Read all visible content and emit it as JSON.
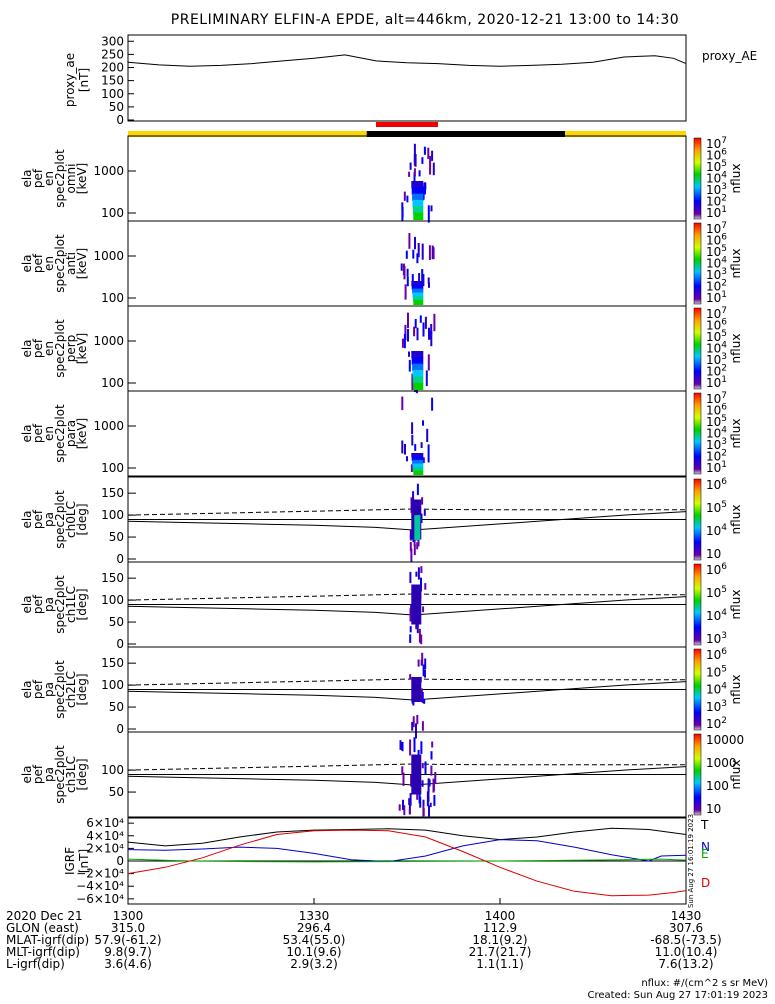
{
  "title": "PRELIMINARY ELFIN-A EPDE, alt=446km, 2020-12-21 13:00 to 14:30",
  "colors": {
    "day_bar": "#ffd700",
    "night_bar": "#000000",
    "science_bar": "#ee0000",
    "igrf_T": "#000000",
    "igrf_N": "#0000cc",
    "igrf_E": "#00aa00",
    "igrf_D": "#dd0000"
  },
  "panels": {
    "ae": {
      "ylabel": [
        "proxy_ae",
        "[nT]"
      ],
      "yticks": [
        "300",
        "250",
        "200",
        "150",
        "100",
        "50",
        "0"
      ],
      "legend": "proxy_AE"
    },
    "spec_en": [
      {
        "ylabel": [
          "ela",
          "pef",
          "en",
          "spec2plot",
          "omni",
          "[keV]"
        ],
        "yticks": [
          "1000",
          "100"
        ],
        "cb_ticks": [
          "10",
          "10",
          "10",
          "10",
          "10",
          "10",
          "10"
        ],
        "cb_exps": [
          "7",
          "6",
          "5",
          "4",
          "3",
          "2",
          "1"
        ],
        "cb_label": "nflux"
      },
      {
        "ylabel": [
          "ela",
          "pef",
          "en",
          "spec2plot",
          "anti",
          "[keV]"
        ],
        "yticks": [
          "1000",
          "100"
        ],
        "cb_ticks": [
          "10",
          "10",
          "10",
          "10",
          "10",
          "10",
          "10"
        ],
        "cb_exps": [
          "7",
          "6",
          "5",
          "4",
          "3",
          "2",
          "1"
        ],
        "cb_label": "nflux"
      },
      {
        "ylabel": [
          "ela",
          "pef",
          "en",
          "spec2plot",
          "perp",
          "[keV]"
        ],
        "yticks": [
          "1000",
          "100"
        ],
        "cb_ticks": [
          "10",
          "10",
          "10",
          "10",
          "10",
          "10",
          "10"
        ],
        "cb_exps": [
          "7",
          "6",
          "5",
          "4",
          "3",
          "2",
          "1"
        ],
        "cb_label": "nflux"
      },
      {
        "ylabel": [
          "ela",
          "pef",
          "en",
          "spec2plot",
          "para",
          "[keV]"
        ],
        "yticks": [
          "1000",
          "100"
        ],
        "cb_ticks": [
          "10",
          "10",
          "10",
          "10",
          "10",
          "10",
          "10"
        ],
        "cb_exps": [
          "7",
          "6",
          "5",
          "4",
          "3",
          "2",
          "1"
        ],
        "cb_label": "nflux"
      }
    ],
    "spec_pa": [
      {
        "ylabel": [
          "ela",
          "pef",
          "pa",
          "spec2plot",
          "ch0LC",
          "[deg]"
        ],
        "yticks": [
          "150",
          "100",
          "50",
          "0"
        ],
        "cb_ticks": [
          "10",
          "10",
          "10",
          "10"
        ],
        "cb_exps": [
          "6",
          "5",
          "4",
          ""
        ],
        "cb_label": "nflux"
      },
      {
        "ylabel": [
          "ela",
          "pef",
          "pa",
          "spec2plot",
          "ch1LC",
          "[deg]"
        ],
        "yticks": [
          "150",
          "100",
          "50",
          "0"
        ],
        "cb_ticks": [
          "10",
          "10",
          "10",
          "10"
        ],
        "cb_exps": [
          "6",
          "5",
          "4",
          "3"
        ],
        "cb_label": "nflux"
      },
      {
        "ylabel": [
          "ela",
          "pef",
          "pa",
          "spec2plot",
          "ch2LC",
          "[deg]"
        ],
        "yticks": [
          "150",
          "100",
          "50",
          "0"
        ],
        "cb_ticks": [
          "10",
          "10",
          "10",
          "10",
          "10"
        ],
        "cb_exps": [
          "6",
          "5",
          "4",
          "3",
          "2"
        ],
        "cb_label": "nflux"
      },
      {
        "ylabel": [
          "ela",
          "pef",
          "pa",
          "spec2plot",
          "ch3LC",
          "[deg]"
        ],
        "yticks": [
          "100",
          "50"
        ],
        "cb_ticks": [
          "10000",
          "1000",
          "100",
          "10"
        ],
        "cb_exps": [
          "",
          "",
          "",
          ""
        ],
        "cb_label": "nflux"
      }
    ],
    "igrf": {
      "ylabel": [
        "IGRF",
        "[nT]"
      ],
      "yticks": [
        "6×10⁴",
        "4×10⁴",
        "2×10⁴",
        "0",
        "−2×10⁴",
        "−4×10⁴",
        "−6×10⁴"
      ],
      "legend": [
        "T",
        "N",
        "E",
        "D"
      ],
      "side_note": "Sun Aug 27 16:01:19 2023"
    }
  },
  "xaxis": {
    "row_labels": [
      "2020 Dec 21",
      "GLON (east)",
      "MLAT-igrf(dip)",
      "MLT-igrf(dip)",
      "L-igrf(dip)"
    ],
    "columns": [
      [
        "1300",
        "315.0",
        "57.9(-61.2)",
        "9.8(9.7)",
        "3.6(4.6)"
      ],
      [
        "1330",
        "296.4",
        "53.4(55.0)",
        "10.1(9.6)",
        "2.9(3.2)"
      ],
      [
        "1400",
        "112.9",
        "18.1(9.2)",
        "21.7(21.7)",
        "1.1(1.1)"
      ],
      [
        "1430",
        "307.6",
        "-68.5(-73.5)",
        "11.0(10.4)",
        "7.6(13.2)"
      ]
    ]
  },
  "footer": {
    "units": "nflux: #/(cm^2 s sr MeV)",
    "created": "Created: Sun Aug 27 17:01:19 2023"
  },
  "chart_data": {
    "type": "line",
    "title": "PRELIMINARY ELFIN-A EPDE, alt=446km, 2020-12-21 13:00 to 14:30",
    "x_range_minutes": [
      0,
      90
    ],
    "x_ticks": [
      "1300",
      "1330",
      "1400",
      "1430"
    ],
    "proxy_ae": {
      "t": [
        0,
        5,
        10,
        15,
        20,
        25,
        30,
        35,
        40,
        45,
        50,
        55,
        60,
        65,
        70,
        75,
        80,
        85,
        88,
        90
      ],
      "v": [
        220,
        210,
        205,
        208,
        215,
        225,
        235,
        248,
        225,
        218,
        215,
        208,
        205,
        208,
        212,
        220,
        240,
        245,
        235,
        215
      ],
      "ylim": [
        0,
        320
      ]
    },
    "science_zone_minutes": [
      40,
      50
    ],
    "night_minutes": [
      38.5,
      70.5
    ],
    "burst_minutes": [
      44,
      48
    ],
    "pa_loss_cone": {
      "t": [
        0,
        10,
        20,
        30,
        40,
        46,
        50,
        60,
        70,
        80,
        90
      ],
      "solid": [
        86,
        83,
        80,
        77,
        72,
        66,
        70,
        80,
        90,
        100,
        108
      ],
      "dashed": [
        100,
        103,
        106,
        109,
        112,
        114,
        113,
        112,
        112,
        112,
        112
      ],
      "horizontal_90": 90
    },
    "igrf": {
      "ylim": [
        -65000,
        65000
      ],
      "series": [
        {
          "name": "T",
          "t": [
            0,
            6,
            12,
            18,
            24,
            30,
            36,
            42,
            48,
            54,
            60,
            66,
            72,
            78,
            84,
            90
          ],
          "v": [
            30000,
            24000,
            28000,
            38000,
            46000,
            49000,
            50000,
            51000,
            49000,
            40000,
            34000,
            38000,
            46000,
            52000,
            50000,
            42000
          ]
        },
        {
          "name": "N",
          "t": [
            0,
            6,
            12,
            18,
            24,
            30,
            36,
            42,
            48,
            54,
            60,
            66,
            72,
            78,
            84,
            86,
            90
          ],
          "v": [
            18000,
            17000,
            19000,
            22000,
            20000,
            12000,
            2000,
            -1000,
            8000,
            24000,
            34000,
            32000,
            22000,
            10000,
            0,
            8000,
            9000
          ]
        },
        {
          "name": "E",
          "t": [
            0,
            10,
            20,
            30,
            40,
            50,
            60,
            70,
            80,
            86,
            90
          ],
          "v": [
            3000,
            0,
            -1000,
            -1500,
            -1000,
            -500,
            0,
            1000,
            2000,
            3000,
            1500
          ]
        },
        {
          "name": "D",
          "t": [
            0,
            6,
            12,
            18,
            24,
            30,
            36,
            42,
            48,
            54,
            60,
            66,
            72,
            78,
            84,
            88,
            90
          ],
          "v": [
            -20000,
            -10000,
            5000,
            25000,
            42000,
            48000,
            49000,
            48000,
            38000,
            15000,
            -10000,
            -32000,
            -48000,
            -55000,
            -54000,
            -50000,
            -47000
          ]
        }
      ]
    }
  }
}
